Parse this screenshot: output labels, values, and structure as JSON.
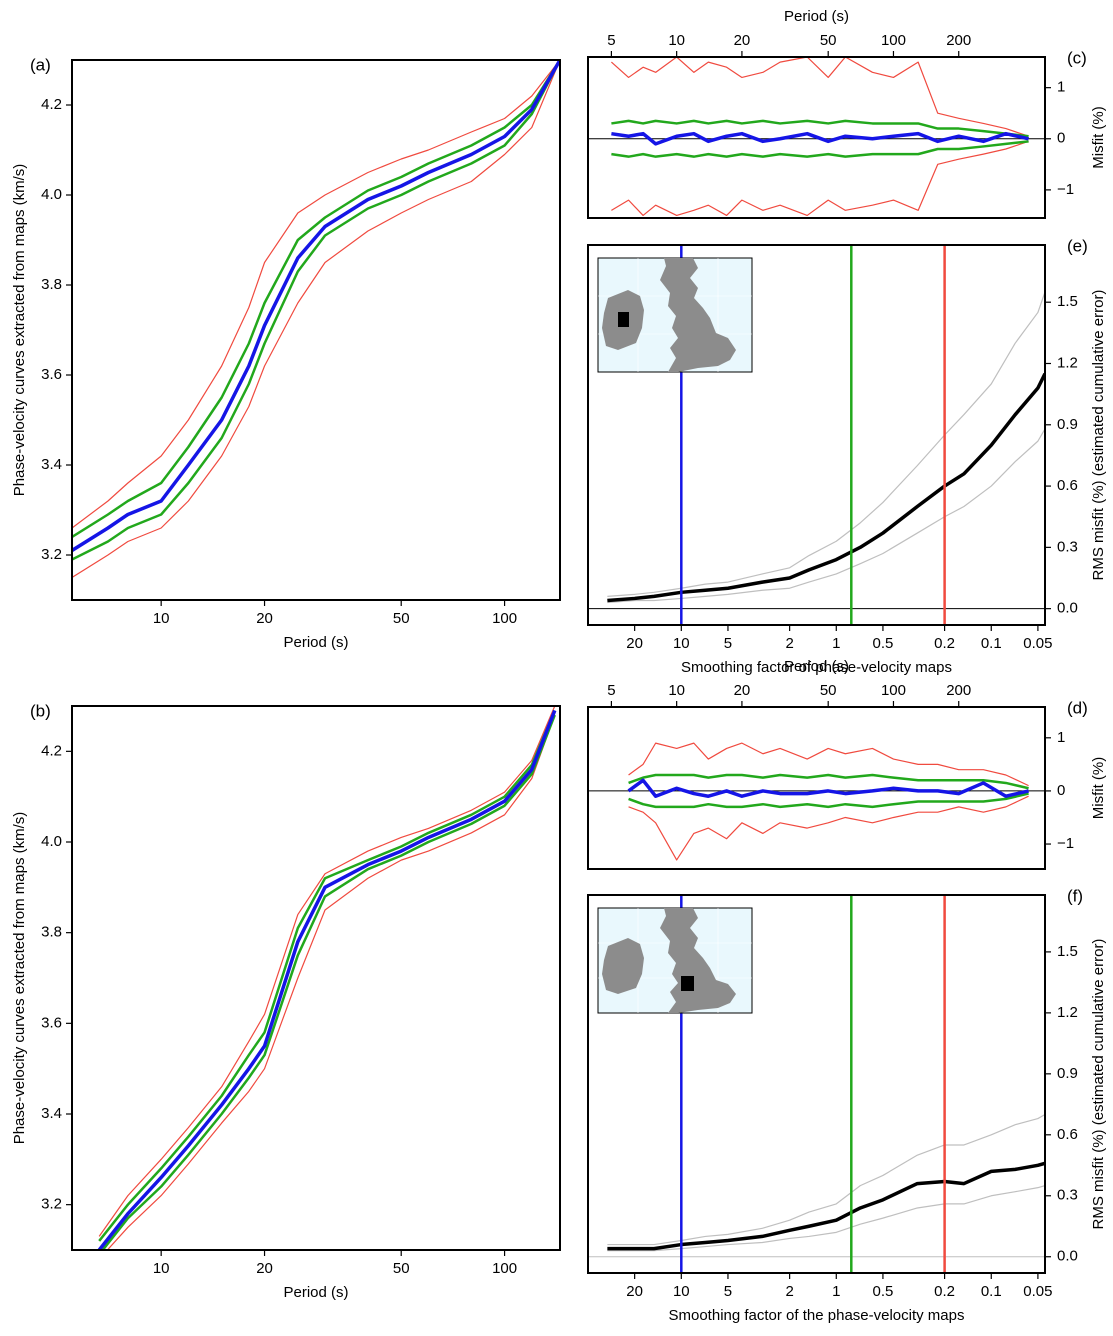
{
  "chart_data": [
    {
      "type": "line",
      "panel_label": "(a)",
      "xlabel": "Period (s)",
      "ylabel": "Phase-velocity curves extracted from maps (km/s)",
      "xaxis": "bottom",
      "yaxis": "left",
      "xscale": "log",
      "xlim": [
        5.5,
        145
      ],
      "ylim": [
        3.1,
        4.3
      ],
      "xticks": [
        10,
        20,
        50,
        100
      ],
      "yticks": [
        3.2,
        3.4,
        3.6,
        3.8,
        {
          "value": 4,
          "label": "4.0"
        },
        4.2
      ],
      "x": [
        5.5,
        7,
        8,
        10,
        12,
        15,
        18,
        20,
        25,
        30,
        40,
        50,
        60,
        80,
        100,
        120,
        145
      ],
      "series": [
        {
          "color": "#f04a3f",
          "values": [
            3.26,
            3.32,
            3.36,
            3.42,
            3.5,
            3.62,
            3.75,
            3.85,
            3.96,
            4.0,
            4.05,
            4.08,
            4.1,
            4.14,
            4.17,
            4.22,
            4.3
          ]
        },
        {
          "color": "#f04a3f",
          "values": [
            3.15,
            3.2,
            3.23,
            3.26,
            3.32,
            3.42,
            3.53,
            3.62,
            3.76,
            3.85,
            3.92,
            3.96,
            3.99,
            4.03,
            4.09,
            4.15,
            4.3
          ]
        },
        {
          "color": "#22a81c",
          "values": [
            3.24,
            3.29,
            3.32,
            3.36,
            3.44,
            3.55,
            3.67,
            3.76,
            3.9,
            3.95,
            4.01,
            4.04,
            4.07,
            4.11,
            4.15,
            4.2,
            4.3
          ]
        },
        {
          "color": "#22a81c",
          "values": [
            3.19,
            3.23,
            3.26,
            3.29,
            3.36,
            3.46,
            3.58,
            3.67,
            3.83,
            3.91,
            3.97,
            4.0,
            4.03,
            4.07,
            4.11,
            4.18,
            4.3
          ]
        },
        {
          "color": "#1515e6",
          "values": [
            3.21,
            3.26,
            3.29,
            3.32,
            3.4,
            3.5,
            3.62,
            3.71,
            3.86,
            3.93,
            3.99,
            4.02,
            4.05,
            4.09,
            4.13,
            4.19,
            4.3
          ]
        }
      ]
    },
    {
      "type": "line",
      "panel_label": "(c)",
      "xlabel": "Period (s)",
      "ylabel": "Misfit (%)",
      "xaxis": "top",
      "yaxis": "right",
      "xscale": "log",
      "xlim": [
        3.9,
        500
      ],
      "ylim": [
        -1.55,
        1.6
      ],
      "xticks": [
        5,
        10,
        20,
        50,
        100,
        200
      ],
      "yticks": [
        {
          "value": -1,
          "label": "−1"
        },
        0,
        1
      ],
      "hlines": [
        {
          "value": 0,
          "color": "#000000"
        }
      ],
      "x": [
        5,
        6,
        7,
        8,
        10,
        12,
        14,
        17,
        20,
        25,
        30,
        40,
        50,
        60,
        80,
        100,
        130,
        160,
        200,
        260,
        330,
        420
      ],
      "series": [
        {
          "color": "#f04a3f",
          "values": [
            1.5,
            1.2,
            1.4,
            1.3,
            1.6,
            1.3,
            1.5,
            1.4,
            1.2,
            1.3,
            1.5,
            1.6,
            1.2,
            1.6,
            1.3,
            1.2,
            1.5,
            0.5,
            0.4,
            0.3,
            0.2,
            0.05
          ]
        },
        {
          "color": "#f04a3f",
          "values": [
            -1.4,
            -1.2,
            -1.5,
            -1.3,
            -1.5,
            -1.4,
            -1.3,
            -1.5,
            -1.2,
            -1.4,
            -1.3,
            -1.5,
            -1.2,
            -1.4,
            -1.3,
            -1.2,
            -1.4,
            -0.5,
            -0.4,
            -0.3,
            -0.2,
            -0.05
          ]
        },
        {
          "color": "#22a81c",
          "values": [
            0.3,
            0.35,
            0.3,
            0.35,
            0.3,
            0.35,
            0.3,
            0.35,
            0.3,
            0.35,
            0.3,
            0.35,
            0.3,
            0.35,
            0.3,
            0.3,
            0.3,
            0.2,
            0.2,
            0.15,
            0.1,
            0.05
          ]
        },
        {
          "color": "#22a81c",
          "values": [
            -0.3,
            -0.35,
            -0.3,
            -0.35,
            -0.3,
            -0.35,
            -0.3,
            -0.35,
            -0.3,
            -0.35,
            -0.3,
            -0.35,
            -0.3,
            -0.35,
            -0.3,
            -0.3,
            -0.3,
            -0.2,
            -0.2,
            -0.15,
            -0.1,
            -0.05
          ]
        },
        {
          "color": "#1515e6",
          "values": [
            0.1,
            0.05,
            0.1,
            -0.1,
            0.05,
            0.1,
            -0.05,
            0.05,
            0.1,
            -0.05,
            0.0,
            0.1,
            -0.05,
            0.05,
            0.0,
            0.05,
            0.1,
            -0.05,
            0.05,
            -0.05,
            0.1,
            0.0
          ]
        }
      ]
    },
    {
      "type": "line",
      "panel_label": "(e)",
      "xlabel": "Smoothing factor of phase-velocity maps",
      "ylabel": "RMS misfit (%) (estimated cumulative error)",
      "xaxis": "bottom",
      "yaxis": "right",
      "xscale": "log",
      "xlim": [
        40,
        0.045
      ],
      "ylim": [
        -0.08,
        1.78
      ],
      "xticks": [
        20,
        10,
        5,
        2,
        1,
        0.5,
        0.2,
        0.1,
        0.05
      ],
      "yticks": [
        {
          "value": 0,
          "label": "0.0"
        },
        0.3,
        0.6,
        0.9,
        1.2,
        1.5
      ],
      "hlines": [
        {
          "value": 0,
          "color": "#000000"
        }
      ],
      "vlines": [
        {
          "value": 10,
          "color": "#1515e6"
        },
        {
          "value": 0.8,
          "color": "#22a81c"
        },
        {
          "value": 0.2,
          "color": "#f04a3f"
        }
      ],
      "x": [
        30,
        20,
        15,
        10,
        7,
        5,
        3,
        2,
        1.5,
        1,
        0.7,
        0.5,
        0.3,
        0.2,
        0.15,
        0.1,
        0.07,
        0.05,
        0.045
      ],
      "series": [
        {
          "color": "#bfbfbf",
          "values": [
            0.06,
            0.07,
            0.08,
            0.1,
            0.12,
            0.13,
            0.17,
            0.2,
            0.26,
            0.33,
            0.42,
            0.52,
            0.7,
            0.85,
            0.95,
            1.1,
            1.3,
            1.45,
            1.55
          ]
        },
        {
          "color": "#bfbfbf",
          "values": [
            0.03,
            0.04,
            0.04,
            0.05,
            0.06,
            0.07,
            0.09,
            0.1,
            0.13,
            0.17,
            0.22,
            0.27,
            0.37,
            0.45,
            0.5,
            0.6,
            0.72,
            0.82,
            0.88
          ]
        },
        {
          "color": "#000000",
          "values": [
            0.04,
            0.05,
            0.06,
            0.08,
            0.09,
            0.1,
            0.13,
            0.15,
            0.19,
            0.24,
            0.3,
            0.37,
            0.5,
            0.6,
            0.66,
            0.8,
            0.95,
            1.08,
            1.15
          ]
        }
      ]
    },
    {
      "type": "line",
      "panel_label": "(b)",
      "xlabel": "Period (s)",
      "ylabel": "Phase-velocity curves extracted from maps (km/s)",
      "xaxis": "bottom",
      "yaxis": "left",
      "xscale": "log",
      "xlim": [
        5.5,
        145
      ],
      "ylim": [
        3.1,
        4.3
      ],
      "xticks": [
        10,
        20,
        50,
        100
      ],
      "yticks": [
        3.2,
        3.4,
        3.6,
        3.8,
        {
          "value": 4,
          "label": "4.0"
        },
        4.2
      ],
      "x": [
        6.6,
        8,
        10,
        12,
        15,
        18,
        20,
        25,
        30,
        40,
        50,
        60,
        80,
        100,
        120,
        140
      ],
      "series": [
        {
          "color": "#f04a3f",
          "values": [
            3.13,
            3.22,
            3.3,
            3.37,
            3.46,
            3.56,
            3.62,
            3.84,
            3.93,
            3.98,
            4.01,
            4.03,
            4.07,
            4.11,
            4.18,
            4.3
          ]
        },
        {
          "color": "#f04a3f",
          "values": [
            3.08,
            3.15,
            3.22,
            3.29,
            3.38,
            3.45,
            3.5,
            3.7,
            3.85,
            3.92,
            3.96,
            3.98,
            4.02,
            4.06,
            4.14,
            4.28
          ]
        },
        {
          "color": "#22a81c",
          "values": [
            3.12,
            3.2,
            3.28,
            3.35,
            3.44,
            3.53,
            3.58,
            3.81,
            3.92,
            3.96,
            3.99,
            4.02,
            4.06,
            4.1,
            4.17,
            4.29
          ]
        },
        {
          "color": "#22a81c",
          "values": [
            3.09,
            3.17,
            3.24,
            3.31,
            3.4,
            3.48,
            3.53,
            3.75,
            3.88,
            3.94,
            3.97,
            4.0,
            4.04,
            4.08,
            4.15,
            4.28
          ]
        },
        {
          "color": "#1515e6",
          "values": [
            3.1,
            3.18,
            3.26,
            3.33,
            3.42,
            3.5,
            3.55,
            3.78,
            3.9,
            3.95,
            3.98,
            4.01,
            4.05,
            4.09,
            4.16,
            4.29
          ]
        }
      ]
    },
    {
      "type": "line",
      "panel_label": "(d)",
      "xlabel": "Period (s)",
      "ylabel": "Misfit (%)",
      "xaxis": "top",
      "yaxis": "right",
      "xscale": "log",
      "xlim": [
        3.9,
        500
      ],
      "ylim": [
        -1.47,
        1.58
      ],
      "xticks": [
        5,
        10,
        20,
        50,
        100,
        200
      ],
      "yticks": [
        {
          "value": -1,
          "label": "−1"
        },
        0,
        1
      ],
      "hlines": [
        {
          "value": 0,
          "color": "#000000"
        }
      ],
      "x": [
        6,
        7,
        8,
        10,
        12,
        14,
        17,
        20,
        25,
        30,
        40,
        50,
        60,
        80,
        100,
        130,
        160,
        200,
        260,
        330,
        420
      ],
      "series": [
        {
          "color": "#f04a3f",
          "values": [
            0.3,
            0.5,
            0.9,
            0.8,
            0.9,
            0.6,
            0.8,
            0.9,
            0.7,
            0.8,
            0.6,
            0.8,
            0.7,
            0.8,
            0.6,
            0.5,
            0.5,
            0.4,
            0.4,
            0.3,
            0.1
          ]
        },
        {
          "color": "#f04a3f",
          "values": [
            -0.3,
            -0.4,
            -0.6,
            -1.3,
            -0.8,
            -0.7,
            -0.9,
            -0.6,
            -0.8,
            -0.6,
            -0.7,
            -0.6,
            -0.5,
            -0.6,
            -0.5,
            -0.4,
            -0.4,
            -0.3,
            -0.4,
            -0.3,
            -0.1
          ]
        },
        {
          "color": "#22a81c",
          "values": [
            0.15,
            0.25,
            0.3,
            0.3,
            0.3,
            0.25,
            0.3,
            0.3,
            0.25,
            0.3,
            0.25,
            0.3,
            0.25,
            0.3,
            0.25,
            0.2,
            0.2,
            0.2,
            0.2,
            0.15,
            0.05
          ]
        },
        {
          "color": "#22a81c",
          "values": [
            -0.15,
            -0.25,
            -0.3,
            -0.3,
            -0.3,
            -0.25,
            -0.3,
            -0.3,
            -0.25,
            -0.3,
            -0.25,
            -0.3,
            -0.25,
            -0.3,
            -0.25,
            -0.2,
            -0.2,
            -0.2,
            -0.2,
            -0.15,
            -0.05
          ]
        },
        {
          "color": "#1515e6",
          "values": [
            0,
            0.2,
            -0.1,
            0.05,
            -0.05,
            -0.1,
            0,
            -0.1,
            0,
            -0.05,
            -0.05,
            0,
            -0.05,
            0,
            0.05,
            0,
            0,
            -0.05,
            0.15,
            -0.1,
            0
          ]
        }
      ]
    },
    {
      "type": "line",
      "panel_label": "(f)",
      "xlabel": "Smoothing factor of the phase-velocity maps",
      "ylabel": "RMS misfit (%) (estimated cumulative error)",
      "xaxis": "bottom",
      "yaxis": "right",
      "xscale": "log",
      "xlim": [
        40,
        0.045
      ],
      "ylim": [
        -0.08,
        1.78
      ],
      "xticks": [
        20,
        10,
        5,
        2,
        1,
        0.5,
        0.2,
        0.1,
        0.05
      ],
      "yticks": [
        {
          "value": 0,
          "label": "0.0"
        },
        0.3,
        0.6,
        0.9,
        1.2,
        1.5
      ],
      "hlines": [
        {
          "value": 0,
          "color": "#bfbfbf"
        }
      ],
      "vlines": [
        {
          "value": 10,
          "color": "#1515e6"
        },
        {
          "value": 0.8,
          "color": "#22a81c"
        },
        {
          "value": 0.2,
          "color": "#f04a3f"
        }
      ],
      "x": [
        30,
        20,
        15,
        10,
        7,
        5,
        3,
        2,
        1.5,
        1,
        0.7,
        0.5,
        0.3,
        0.2,
        0.15,
        0.1,
        0.07,
        0.05,
        0.045
      ],
      "series": [
        {
          "color": "#bfbfbf",
          "values": [
            0.06,
            0.06,
            0.06,
            0.08,
            0.1,
            0.11,
            0.14,
            0.18,
            0.22,
            0.26,
            0.35,
            0.4,
            0.5,
            0.55,
            0.55,
            0.6,
            0.65,
            0.68,
            0.7
          ]
        },
        {
          "color": "#bfbfbf",
          "values": [
            0.03,
            0.03,
            0.03,
            0.04,
            0.05,
            0.06,
            0.07,
            0.09,
            0.1,
            0.12,
            0.16,
            0.19,
            0.24,
            0.26,
            0.26,
            0.3,
            0.32,
            0.34,
            0.35
          ]
        },
        {
          "color": "#000000",
          "values": [
            0.04,
            0.04,
            0.04,
            0.06,
            0.07,
            0.08,
            0.1,
            0.13,
            0.15,
            0.18,
            0.24,
            0.28,
            0.36,
            0.37,
            0.36,
            0.42,
            0.43,
            0.45,
            0.46
          ]
        }
      ]
    }
  ]
}
